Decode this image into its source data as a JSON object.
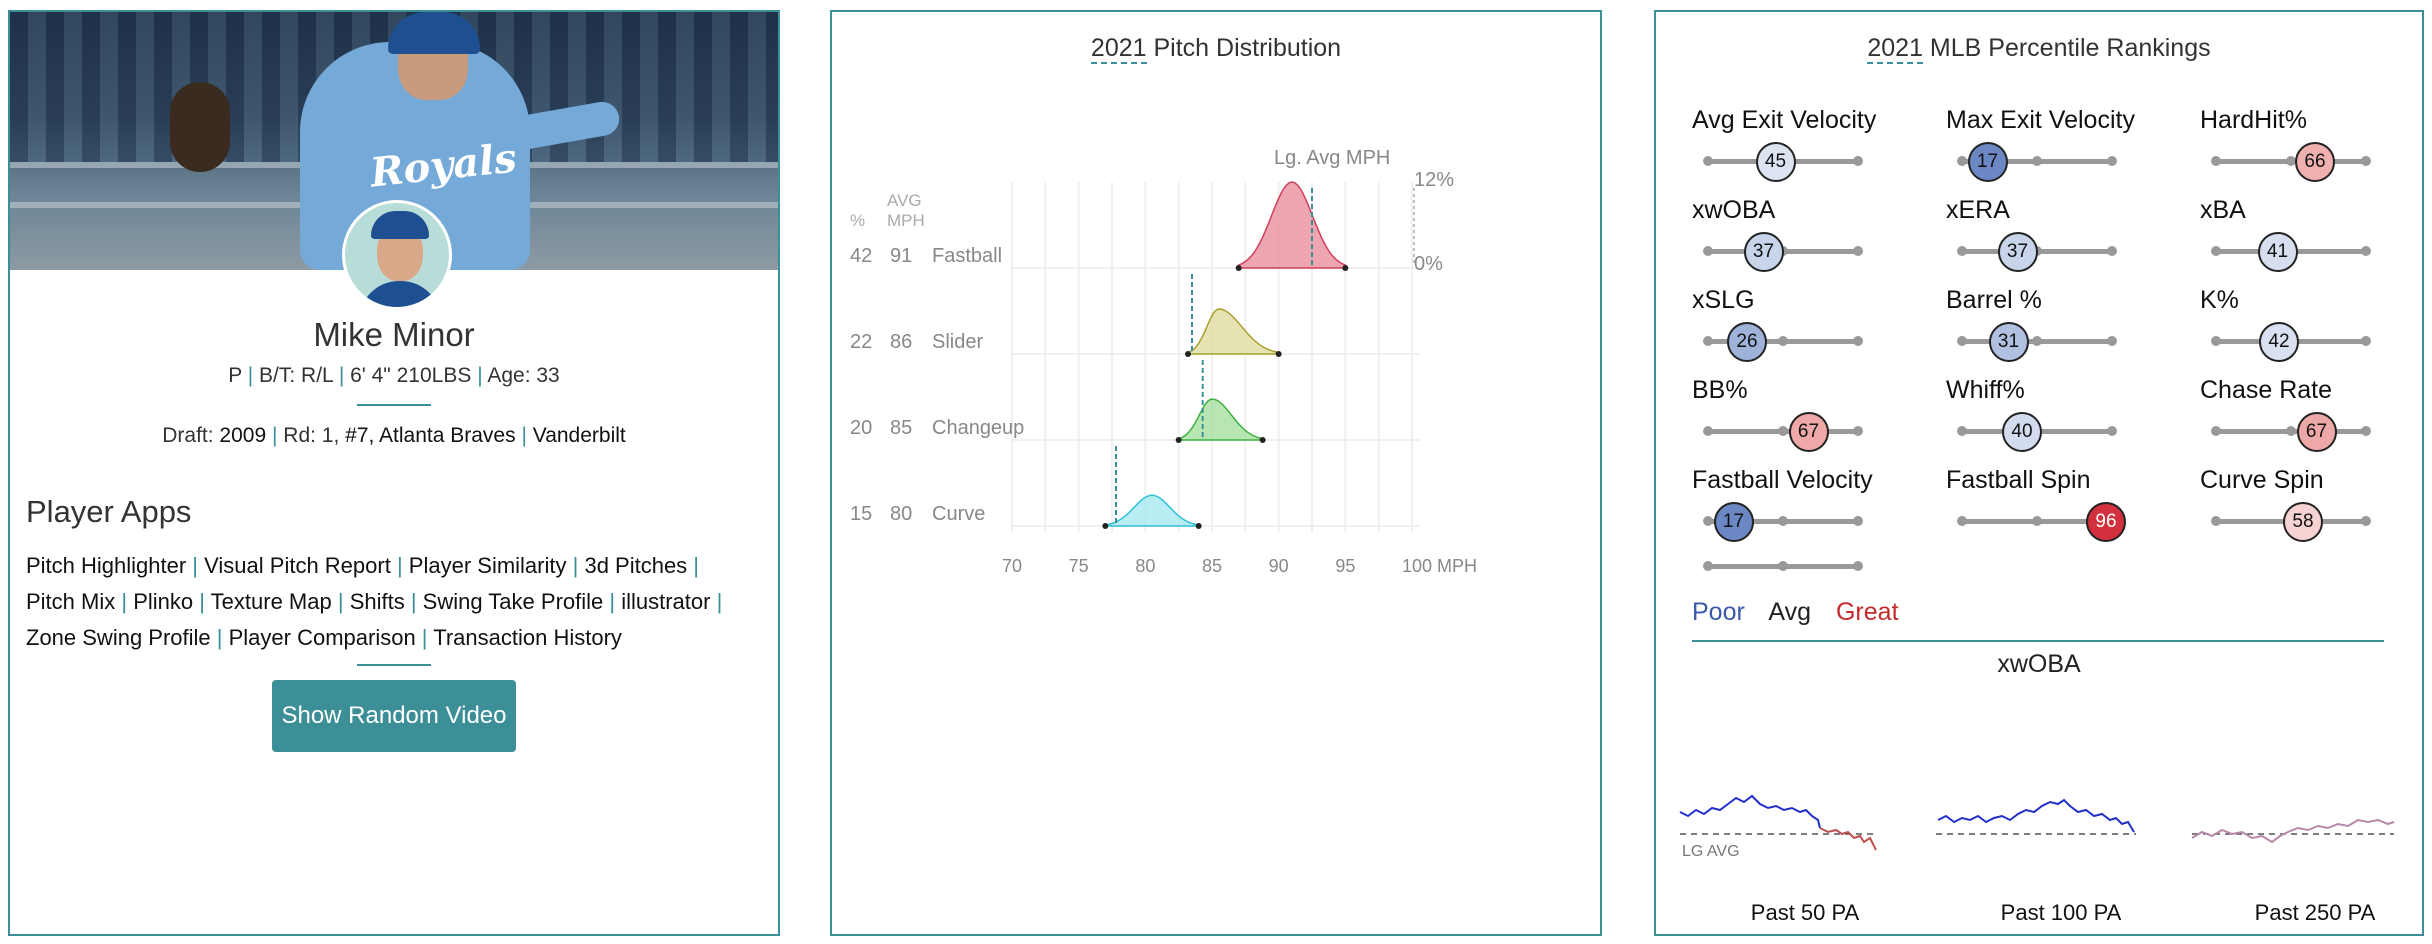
{
  "player": {
    "name": "Mike Minor",
    "position": "P",
    "bt": "B/T: R/L",
    "size": "6' 4\" 210LBS",
    "age": "Age: 33",
    "draft_label": "Draft: ",
    "draft_year": "2009",
    "draft_round_label": "Rd: 1, ",
    "draft_pick": "#7, Atlanta Braves",
    "school": "Vanderbilt",
    "jersey": "Royals"
  },
  "apps": {
    "title": "Player Apps",
    "links": [
      "Pitch Highlighter",
      "Visual Pitch Report",
      "Player Similarity",
      "3d Pitches",
      "Pitch Mix",
      "Plinko",
      "Texture Map",
      "Shifts",
      "Swing Take Profile",
      "illustrator",
      "Zone Swing Profile",
      "Player Comparison",
      "Transaction History"
    ],
    "random_video_button": "Show Random Video"
  },
  "pitch_distribution": {
    "title_year": "2021",
    "title_rest": " Pitch Distribution",
    "lg_avg_label": "Lg. Avg MPH",
    "col_pct": "%",
    "col_avg": "AVG",
    "col_mph": "MPH",
    "scale_top": "12%",
    "scale_bottom": "0%",
    "chart_data": {
      "type": "area",
      "x_ticks": [
        "70",
        "75",
        "80",
        "85",
        "90",
        "95",
        "100 MPH"
      ],
      "xlim": [
        70,
        100
      ],
      "pitches": [
        {
          "name": "Fastball",
          "pct": "42",
          "avg_mph": "91",
          "lg_avg": 92.5,
          "min": 87,
          "max": 95,
          "peak": 91,
          "color": "#e8909e",
          "stroke": "#d0405a"
        },
        {
          "name": "Slider",
          "pct": "22",
          "avg_mph": "86",
          "lg_avg": 83.5,
          "min": 83.2,
          "max": 90,
          "peak": 85.5,
          "color": "#e0dca0",
          "stroke": "#a8a030"
        },
        {
          "name": "Changeup",
          "pct": "20",
          "avg_mph": "85",
          "lg_avg": 84.3,
          "min": 82.5,
          "max": 88.8,
          "peak": 85,
          "color": "#a6e0a0",
          "stroke": "#40b040"
        },
        {
          "name": "Curve",
          "pct": "15",
          "avg_mph": "80",
          "lg_avg": 77.8,
          "min": 77,
          "max": 84,
          "peak": 80.5,
          "color": "#a6eaf0",
          "stroke": "#30c0d8"
        }
      ]
    }
  },
  "rankings": {
    "title_year": "2021",
    "title_rest": " MLB Percentile Rankings",
    "metrics": [
      {
        "label": "Avg Exit Velocity",
        "value": "45",
        "pct": 45,
        "fill": "#dde4f1"
      },
      {
        "label": "Max Exit Velocity",
        "value": "17",
        "pct": 17,
        "fill": "#6b87c4"
      },
      {
        "label": "HardHit%",
        "value": "66",
        "pct": 66,
        "fill": "#f0b0b0"
      },
      {
        "label": "xwOBA",
        "value": "37",
        "pct": 37,
        "fill": "#c8d4ea"
      },
      {
        "label": "xERA",
        "value": "37",
        "pct": 37,
        "fill": "#c8d4ea"
      },
      {
        "label": "xBA",
        "value": "41",
        "pct": 41,
        "fill": "#d6def0"
      },
      {
        "label": "xSLG",
        "value": "26",
        "pct": 26,
        "fill": "#9fb2da"
      },
      {
        "label": "Barrel %",
        "value": "31",
        "pct": 31,
        "fill": "#b0c0e0"
      },
      {
        "label": "K%",
        "value": "42",
        "pct": 42,
        "fill": "#d9e0f1"
      },
      {
        "label": "BB%",
        "value": "67",
        "pct": 67,
        "fill": "#eea8a8"
      },
      {
        "label": "Whiff%",
        "value": "40",
        "pct": 40,
        "fill": "#d3dbef"
      },
      {
        "label": "Chase Rate",
        "value": "67",
        "pct": 67,
        "fill": "#eea8a8"
      },
      {
        "label": "Fastball Velocity",
        "value": "17",
        "pct": 17,
        "fill": "#6b87c4"
      },
      {
        "label": "Fastball Spin",
        "value": "96",
        "pct": 96,
        "fill": "#d1303c",
        "text": "#ffffff"
      },
      {
        "label": "Curve Spin",
        "value": "58",
        "pct": 58,
        "fill": "#f6d2d2"
      }
    ],
    "legend": {
      "poor": "Poor",
      "avg": "Avg",
      "great": "Great",
      "poor_color": "#3a5aa8",
      "avg_color": "#222222",
      "great_color": "#c42a2a"
    },
    "xwoba_title": "xwOBA",
    "lg_avg_label": "LG AVG",
    "windows": [
      "Past 50 PA",
      "Past 100 PA",
      "Past 250 PA"
    ]
  }
}
